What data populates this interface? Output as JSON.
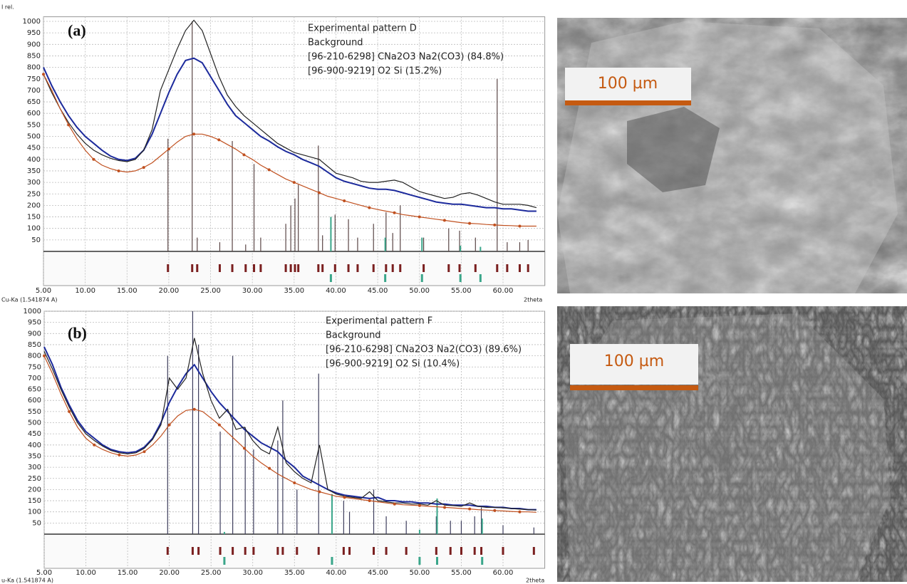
{
  "chart_data": [
    {
      "type": "line",
      "panel_label": "(a)",
      "y_label": "I rel.",
      "x_label": "2theta",
      "source_label": "Cu-Ka (1.541874 A)",
      "xlim": [
        5,
        65
      ],
      "ylim": [
        0,
        1020
      ],
      "xticks": [
        {
          "value": 5,
          "label": "5.00"
        },
        {
          "value": 10,
          "label": "10.00"
        },
        {
          "value": 15,
          "label": "15.00"
        },
        {
          "value": 20,
          "label": "20.00"
        },
        {
          "value": 25,
          "label": "25.00"
        },
        {
          "value": 30,
          "label": "30.00"
        },
        {
          "value": 35,
          "label": "35.00"
        },
        {
          "value": 40,
          "label": "40.00"
        },
        {
          "value": 45,
          "label": "45.00"
        },
        {
          "value": 50,
          "label": "50.00"
        },
        {
          "value": 55,
          "label": "55.00"
        },
        {
          "value": 60,
          "label": "60.00"
        }
      ],
      "yticks": [
        50,
        100,
        150,
        200,
        250,
        300,
        350,
        400,
        450,
        500,
        550,
        600,
        650,
        700,
        750,
        800,
        850,
        900,
        950,
        1000
      ],
      "grid": true,
      "x": [
        5,
        6,
        7,
        8,
        9,
        10,
        11,
        12,
        13,
        14,
        15,
        16,
        17,
        18,
        19,
        20,
        21,
        22,
        23,
        24,
        25,
        26,
        27,
        28,
        29,
        30,
        31,
        32,
        33,
        34,
        35,
        36,
        37,
        38,
        39,
        40,
        41,
        42,
        43,
        44,
        45,
        46,
        47,
        48,
        49,
        50,
        51,
        52,
        53,
        54,
        55,
        56,
        57,
        58,
        59,
        60,
        61,
        62,
        63,
        64
      ],
      "series": [
        {
          "name": "Experimental pattern D",
          "color": "#1c2a9c",
          "values": [
            800,
            720,
            650,
            590,
            540,
            500,
            470,
            440,
            415,
            400,
            395,
            405,
            440,
            510,
            600,
            690,
            770,
            830,
            840,
            820,
            760,
            700,
            640,
            590,
            560,
            530,
            500,
            480,
            455,
            435,
            420,
            400,
            385,
            370,
            345,
            320,
            305,
            295,
            285,
            275,
            270,
            270,
            265,
            255,
            245,
            235,
            225,
            215,
            210,
            205,
            205,
            200,
            195,
            190,
            190,
            185,
            185,
            180,
            175,
            175
          ]
        },
        {
          "name": "Background",
          "color": "#c0501f",
          "values": [
            770,
            700,
            620,
            550,
            490,
            440,
            400,
            375,
            360,
            350,
            345,
            350,
            365,
            385,
            415,
            445,
            475,
            500,
            510,
            510,
            500,
            485,
            465,
            445,
            420,
            400,
            375,
            355,
            335,
            315,
            300,
            285,
            270,
            255,
            240,
            230,
            220,
            210,
            200,
            190,
            182,
            175,
            168,
            160,
            155,
            150,
            145,
            140,
            135,
            130,
            125,
            122,
            120,
            117,
            115,
            113,
            112,
            110,
            110,
            110
          ]
        },
        {
          "color": "#222222",
          "values": [
            770,
            690,
            620,
            560,
            510,
            470,
            440,
            420,
            405,
            395,
            390,
            400,
            440,
            530,
            700,
            790,
            880,
            960,
            1005,
            960,
            860,
            760,
            680,
            630,
            590,
            560,
            530,
            500,
            470,
            450,
            430,
            420,
            410,
            400,
            370,
            340,
            330,
            320,
            305,
            300,
            300,
            305,
            310,
            300,
            280,
            260,
            250,
            240,
            230,
            235,
            250,
            255,
            245,
            230,
            215,
            205,
            205,
            205,
            200,
            190
          ]
        }
      ],
      "phases": [
        {
          "name": "[96-210-6298] CNa2O3 Na2(CO3) (84.8%)",
          "color": "#5a4545",
          "positions": [
            19.9,
            22.8,
            23.4,
            26.1,
            27.6,
            29.2,
            30.2,
            31.0,
            34.0,
            34.6,
            35.1,
            35.5,
            37.9,
            38.4,
            39.9,
            41.5,
            42.6,
            44.5,
            46.0,
            46.8,
            47.7,
            50.5,
            53.5,
            54.8,
            56.7,
            59.3,
            60.5,
            62.0,
            63.0
          ],
          "heights": [
            490,
            1000,
            60,
            40,
            480,
            30,
            380,
            60,
            120,
            200,
            230,
            290,
            460,
            70,
            160,
            140,
            60,
            120,
            170,
            80,
            200,
            60,
            100,
            90,
            60,
            750,
            40,
            40,
            50
          ]
        },
        {
          "name": "[96-900-9219] O2 Si (15.2%)",
          "color": "#3aa68a",
          "positions": [
            39.4,
            45.9,
            50.3,
            54.9,
            57.3
          ],
          "heights": [
            150,
            60,
            60,
            25,
            20
          ]
        }
      ]
    },
    {
      "type": "line",
      "panel_label": "(b)",
      "x_label": "2theta",
      "source_label": "u-Ka (1.541874 A)",
      "xlim": [
        5,
        65
      ],
      "ylim": [
        0,
        1000
      ],
      "xticks": [
        {
          "value": 5,
          "label": "5.00"
        },
        {
          "value": 10,
          "label": "10.00"
        },
        {
          "value": 15,
          "label": "15.00"
        },
        {
          "value": 20,
          "label": "20.00"
        },
        {
          "value": 25,
          "label": "25.00"
        },
        {
          "value": 30,
          "label": "30.00"
        },
        {
          "value": 35,
          "label": "35.00"
        },
        {
          "value": 40,
          "label": "40.00"
        },
        {
          "value": 45,
          "label": "45.00"
        },
        {
          "value": 50,
          "label": "50.00"
        },
        {
          "value": 55,
          "label": "55.00"
        },
        {
          "value": 60,
          "label": "60.00"
        }
      ],
      "yticks": [
        50,
        100,
        150,
        200,
        250,
        300,
        350,
        400,
        450,
        500,
        550,
        600,
        650,
        700,
        750,
        800,
        850,
        900,
        950,
        1000
      ],
      "grid": true,
      "x": [
        5,
        6,
        7,
        8,
        9,
        10,
        11,
        12,
        13,
        14,
        15,
        16,
        17,
        18,
        19,
        20,
        21,
        22,
        23,
        24,
        25,
        26,
        27,
        28,
        29,
        30,
        31,
        32,
        33,
        34,
        35,
        36,
        37,
        38,
        39,
        40,
        41,
        42,
        43,
        44,
        45,
        46,
        47,
        48,
        49,
        50,
        51,
        52,
        53,
        54,
        55,
        56,
        57,
        58,
        59,
        60,
        61,
        62,
        63,
        64
      ],
      "series": [
        {
          "name": "Experimental pattern F",
          "color": "#1c2a9c",
          "values": [
            840,
            760,
            660,
            580,
            510,
            460,
            430,
            400,
            380,
            370,
            365,
            370,
            390,
            430,
            500,
            590,
            660,
            720,
            760,
            700,
            640,
            590,
            550,
            510,
            470,
            440,
            410,
            390,
            370,
            330,
            300,
            260,
            240,
            220,
            200,
            185,
            175,
            170,
            165,
            160,
            165,
            150,
            150,
            145,
            145,
            140,
            140,
            135,
            135,
            130,
            130,
            130,
            125,
            125,
            120,
            120,
            115,
            115,
            110,
            110
          ]
        },
        {
          "name": "Background",
          "color": "#c0501f",
          "values": [
            800,
            720,
            630,
            550,
            480,
            430,
            400,
            380,
            365,
            355,
            350,
            355,
            370,
            400,
            440,
            490,
            530,
            555,
            560,
            550,
            520,
            490,
            455,
            420,
            385,
            350,
            320,
            295,
            270,
            250,
            230,
            215,
            200,
            190,
            180,
            170,
            165,
            160,
            155,
            150,
            145,
            140,
            135,
            132,
            130,
            128,
            125,
            123,
            120,
            118,
            115,
            113,
            110,
            108,
            106,
            104,
            102,
            100,
            100,
            98
          ]
        },
        {
          "color": "#222222",
          "values": [
            820,
            740,
            650,
            570,
            500,
            450,
            420,
            395,
            375,
            365,
            360,
            365,
            385,
            425,
            490,
            700,
            650,
            700,
            880,
            720,
            600,
            520,
            560,
            470,
            480,
            420,
            380,
            360,
            480,
            320,
            280,
            250,
            230,
            400,
            200,
            180,
            170,
            165,
            160,
            190,
            150,
            145,
            140,
            140,
            135,
            135,
            130,
            150,
            130,
            128,
            125,
            140,
            125,
            120,
            120,
            118,
            115,
            112,
            110,
            108
          ]
        }
      ],
      "phases": [
        {
          "name": "[96-210-6298] CNa2O3 Na2(CO3) (89.6%)",
          "color": "#3d3d5c",
          "positions": [
            19.8,
            22.8,
            23.5,
            26.1,
            27.6,
            29.1,
            30.1,
            33.0,
            33.6,
            35.3,
            37.9,
            40.9,
            41.6,
            44.5,
            46.0,
            48.4,
            52.0,
            53.7,
            55.0,
            56.6,
            57.4,
            60.0,
            63.7
          ],
          "heights": [
            800,
            1000,
            850,
            460,
            800,
            480,
            380,
            420,
            600,
            200,
            720,
            150,
            100,
            200,
            80,
            60,
            80,
            60,
            60,
            80,
            120,
            40,
            30
          ]
        },
        {
          "name": "[96-900-9219] O2 Si (10.4%)",
          "color": "#3aa68a",
          "positions": [
            26.6,
            39.5,
            50.0,
            52.1,
            57.5
          ],
          "heights": [
            10,
            180,
            20,
            160,
            70
          ]
        }
      ]
    }
  ],
  "images": [
    {
      "scale_label": "100 µm"
    },
    {
      "scale_label": "100 µm"
    }
  ]
}
